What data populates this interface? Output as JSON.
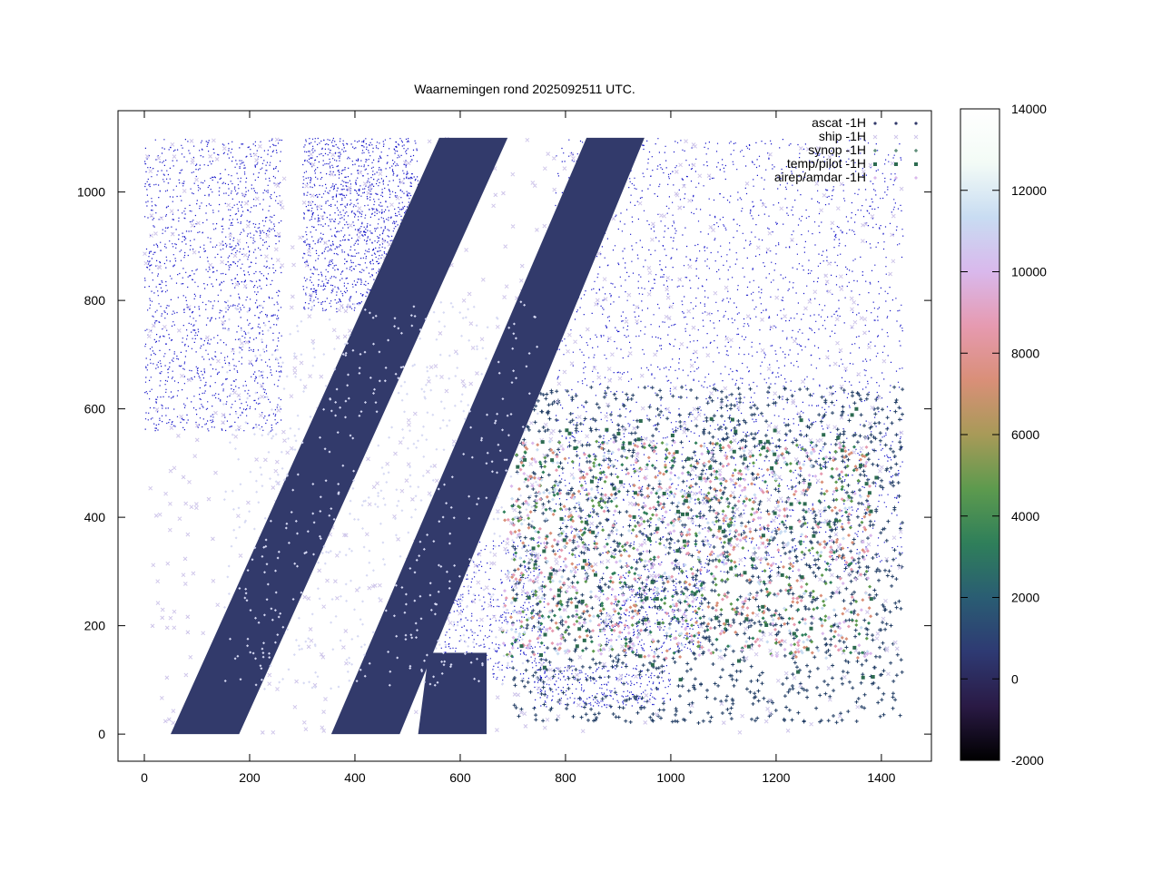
{
  "chart_data": {
    "type": "scatter",
    "title": "Waarnemingen rond 2025092511 UTC.",
    "xlabel": "",
    "ylabel": "",
    "xlim": [
      -50,
      1495
    ],
    "ylim": [
      -50,
      1150
    ],
    "x_ticks": [
      "0",
      "200",
      "400",
      "600",
      "800",
      "1000",
      "1200",
      "1400"
    ],
    "y_ticks": [
      "0",
      "200",
      "400",
      "600",
      "800",
      "1000"
    ],
    "grid": false,
    "legend_position": "top-right",
    "legend": [
      {
        "label": "ascat -1H",
        "marker": "dot"
      },
      {
        "label": "ship -1H",
        "marker": "cross"
      },
      {
        "label": "synop -1H",
        "marker": "plus"
      },
      {
        "label": "temp/pilot -1H",
        "marker": "square"
      },
      {
        "label": "airep/amdar -1H",
        "marker": "diamond"
      }
    ],
    "colorbar": {
      "min": -2000,
      "max": 14000,
      "ticks": [
        "14000",
        "12000",
        "10000",
        "8000",
        "6000",
        "4000",
        "2000",
        "0",
        "-2000"
      ],
      "palette": [
        "#000000",
        "#2a1a45",
        "#2e3a73",
        "#2a5d73",
        "#2f7f5a",
        "#5d9a4e",
        "#a89a58",
        "#d98f78",
        "#e69ab0",
        "#d9b8ec",
        "#c8dcf2",
        "#f3fbf6",
        "#ffffff"
      ]
    },
    "ascat_swaths": [
      {
        "x0": 50,
        "x1": 180,
        "x2": 690,
        "x3": 560,
        "y0": 0,
        "y1": 1100
      },
      {
        "x0": 355,
        "x1": 485,
        "x2": 950,
        "x3": 840,
        "y0": 0,
        "y1": 1100
      },
      {
        "x0": 520,
        "x1": 650,
        "x2": 650,
        "x3": 540,
        "y0": 0,
        "y1": 150
      }
    ],
    "colors": {
      "ascat": "#323a6b",
      "coastline": "#1515c8",
      "synop": "#233f66",
      "temp": "#2d6b50"
    }
  }
}
